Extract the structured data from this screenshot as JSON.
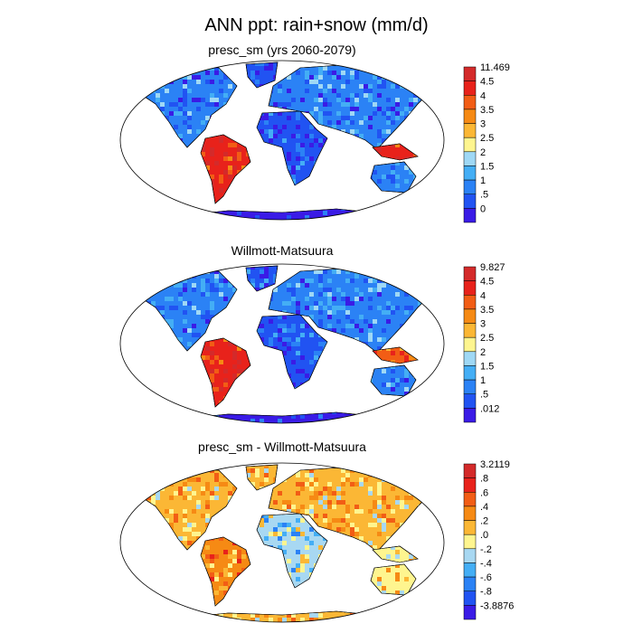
{
  "title": "ANN ppt: rain+snow (mm/d)",
  "palette": {
    "precip": [
      "#3a1be6",
      "#2353f2",
      "#2f7ef5",
      "#3aa8f5",
      "#7fd0f5",
      "#b9e2f2",
      "#fff58a",
      "#fcc328",
      "#fb8a18",
      "#f23412",
      "#d32024",
      "#c8101a"
    ],
    "diff": [
      "#3a1be6",
      "#2353f2",
      "#2f7ef5",
      "#3aa8f5",
      "#7fd0f5",
      "#b9e2f2",
      "#fff58a",
      "#fcc328",
      "#fb8a18",
      "#f23412",
      "#d32024",
      "#c8101a"
    ],
    "land_outline": "#000000",
    "map_border": "#000000"
  },
  "panels": [
    {
      "id": "model",
      "title": "presc_sm (yrs 2060-2079)",
      "colorbar_labels": [
        "11.469",
        "4.5",
        "4",
        "3.5",
        "3",
        "2.5",
        "2",
        "1.5",
        "1",
        ".5",
        "0"
      ],
      "colorbar_colors": [
        "#d42a2a",
        "#e8221b",
        "#f25d15",
        "#f68a14",
        "#fbb735",
        "#fef58f",
        "#9fd8f5",
        "#44aef5",
        "#2b82f5",
        "#2153f2",
        "#3a1be6"
      ]
    },
    {
      "id": "obs",
      "title": "Willmott-Matsuura",
      "colorbar_labels": [
        "9.827",
        "4.5",
        "4",
        "3.5",
        "3",
        "2.5",
        "2",
        "1.5",
        "1",
        ".5",
        ".012"
      ],
      "colorbar_colors": [
        "#d42a2a",
        "#e8221b",
        "#f25d15",
        "#f68a14",
        "#fbb735",
        "#fef58f",
        "#9fd8f5",
        "#44aef5",
        "#2b82f5",
        "#2153f2",
        "#3a1be6"
      ]
    },
    {
      "id": "diff",
      "title": "presc_sm - Willmott-Matsuura",
      "colorbar_labels": [
        "3.2119",
        ".8",
        ".6",
        ".4",
        ".2",
        ".0",
        "-.2",
        "-.4",
        "-.6",
        "-.8",
        "-3.8876"
      ],
      "colorbar_colors": [
        "#d42a2a",
        "#e8221b",
        "#f25d15",
        "#f68a14",
        "#fbb735",
        "#fef58f",
        "#a8d8f2",
        "#44aef5",
        "#2b82f5",
        "#2153f2",
        "#3a1be6"
      ]
    }
  ]
}
